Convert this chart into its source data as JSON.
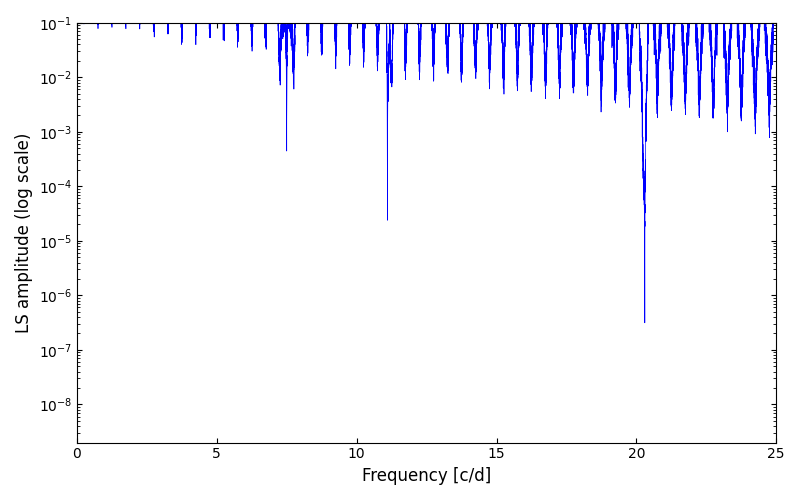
{
  "title": "",
  "xlabel": "Frequency [c/d]",
  "ylabel": "LS amplitude (log scale)",
  "line_color": "blue",
  "xlim": [
    0,
    25
  ],
  "ylim_log": [
    -8.7,
    -1.0
  ],
  "xticks": [
    0,
    5,
    10,
    15,
    20,
    25
  ],
  "background_color": "white",
  "figsize": [
    8.0,
    5.0
  ],
  "dpi": 100
}
